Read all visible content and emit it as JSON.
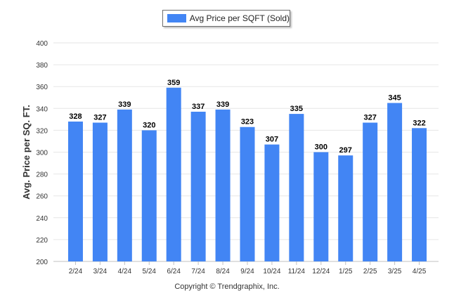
{
  "copyright": "Copyright © Trendgraphix, Inc.",
  "colors": {
    "bar": "#4285f4",
    "grid": "#e6e6e6",
    "axis": "#c0c0c0",
    "tick_text": "#333333",
    "data_label": "#000000"
  },
  "chart_data": {
    "type": "bar",
    "title": "",
    "xlabel": "",
    "ylabel": "Avg. Price per SQ. FT.",
    "legend": "top-center",
    "grid": true,
    "categories": [
      "2/24",
      "3/24",
      "4/24",
      "5/24",
      "6/24",
      "7/24",
      "8/24",
      "9/24",
      "10/24",
      "11/24",
      "12/24",
      "1/25",
      "2/25",
      "3/25",
      "4/25"
    ],
    "series": [
      {
        "name": "Avg Price per SQFT (Sold)",
        "values": [
          328,
          327,
          339,
          320,
          359,
          337,
          339,
          323,
          307,
          335,
          300,
          297,
          327,
          345,
          322
        ]
      }
    ],
    "ylim": [
      200,
      400
    ],
    "yticks": [
      200,
      220,
      240,
      260,
      280,
      300,
      320,
      340,
      360,
      380,
      400
    ]
  }
}
